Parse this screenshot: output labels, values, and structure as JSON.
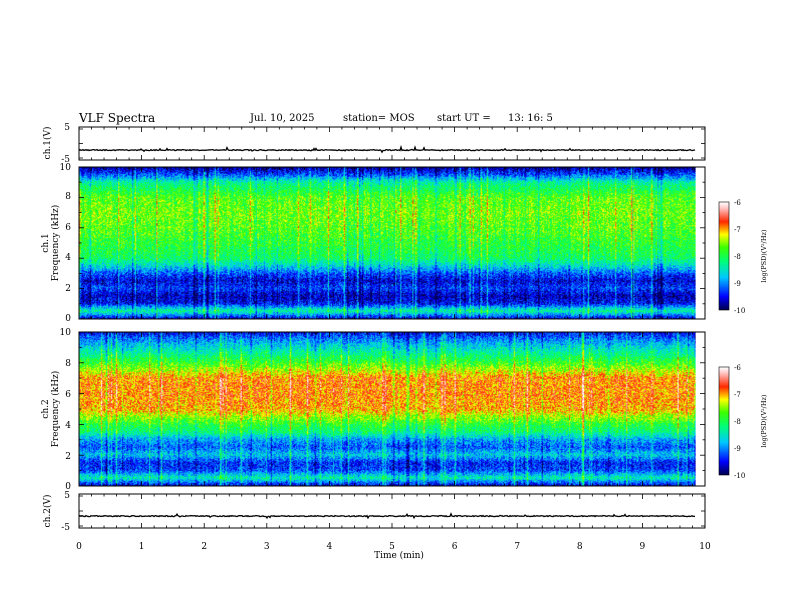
{
  "header": {
    "title": "VLF Spectra",
    "date": "Jul. 10, 2025",
    "station_label": "station= MOS",
    "start_label": "start UT =",
    "start_time": "13: 16: 5"
  },
  "colors": {
    "colormap": [
      "#000070",
      "#0000ff",
      "#00ffff",
      "#00ff00",
      "#ffff00",
      "#ff0000",
      "#ffffff"
    ]
  },
  "chart_data": [
    {
      "type": "line",
      "id": "ch1-waveform",
      "ylabel": "ch.1(V)",
      "ylim": [
        -5,
        5
      ],
      "yticks": [
        "5",
        "-5"
      ],
      "baseline": -2
    },
    {
      "type": "heatmap",
      "id": "ch1-spectrogram",
      "ylabel_top": "ch.1",
      "ylabel": "Frequency (kHz)",
      "ylim": [
        0,
        10
      ],
      "yticks": [
        "0",
        "2",
        "4",
        "6",
        "8",
        "10"
      ],
      "colorbar": {
        "label": "log(PSD)(V²/Hz)",
        "range": [
          -10,
          -6
        ],
        "ticks": [
          "-6",
          "-7",
          "-8",
          "-9",
          "-10"
        ]
      },
      "band_profile_log_psd": [
        {
          "freq_khz": 0.0,
          "value": -9.6
        },
        {
          "freq_khz": 0.5,
          "value": -8.3
        },
        {
          "freq_khz": 1.0,
          "value": -9.5
        },
        {
          "freq_khz": 1.5,
          "value": -9.7
        },
        {
          "freq_khz": 2.0,
          "value": -9.3
        },
        {
          "freq_khz": 2.5,
          "value": -9.6
        },
        {
          "freq_khz": 3.0,
          "value": -9.2
        },
        {
          "freq_khz": 3.5,
          "value": -8.6
        },
        {
          "freq_khz": 4.0,
          "value": -8.1
        },
        {
          "freq_khz": 5.0,
          "value": -7.9
        },
        {
          "freq_khz": 6.0,
          "value": -7.7
        },
        {
          "freq_khz": 7.0,
          "value": -7.6
        },
        {
          "freq_khz": 8.0,
          "value": -7.7
        },
        {
          "freq_khz": 9.0,
          "value": -8.3
        },
        {
          "freq_khz": 9.5,
          "value": -9.2
        },
        {
          "freq_khz": 10.0,
          "value": -9.8
        }
      ]
    },
    {
      "type": "heatmap",
      "id": "ch2-spectrogram",
      "ylabel_top": "ch.2",
      "ylabel": "Frequency (kHz)",
      "ylim": [
        0,
        10
      ],
      "yticks": [
        "0",
        "2",
        "4",
        "6",
        "8",
        "10"
      ],
      "colorbar": {
        "label": "log(PSD)(V²/Hz)",
        "range": [
          -10,
          -6
        ],
        "ticks": [
          "-6",
          "-7",
          "-8",
          "-9",
          "-10"
        ]
      },
      "band_profile_log_psd": [
        {
          "freq_khz": 0.0,
          "value": -9.6
        },
        {
          "freq_khz": 0.5,
          "value": -8.4
        },
        {
          "freq_khz": 1.0,
          "value": -9.3
        },
        {
          "freq_khz": 1.5,
          "value": -9.4
        },
        {
          "freq_khz": 2.0,
          "value": -8.7
        },
        {
          "freq_khz": 2.5,
          "value": -9.2
        },
        {
          "freq_khz": 3.0,
          "value": -8.9
        },
        {
          "freq_khz": 3.5,
          "value": -8.2
        },
        {
          "freq_khz": 4.0,
          "value": -7.9
        },
        {
          "freq_khz": 5.0,
          "value": -7.0
        },
        {
          "freq_khz": 6.0,
          "value": -6.9
        },
        {
          "freq_khz": 7.0,
          "value": -6.9
        },
        {
          "freq_khz": 8.0,
          "value": -7.8
        },
        {
          "freq_khz": 9.0,
          "value": -8.6
        },
        {
          "freq_khz": 9.5,
          "value": -9.0
        },
        {
          "freq_khz": 10.0,
          "value": -9.5
        }
      ]
    },
    {
      "type": "line",
      "id": "ch2-waveform",
      "ylabel": "ch.2(V)",
      "ylim": [
        -5,
        5
      ],
      "yticks": [
        "5",
        "-5"
      ],
      "baseline": -1.5
    }
  ],
  "xaxis": {
    "label": "Time (min)",
    "xlim": [
      0,
      10
    ],
    "ticks": [
      "0",
      "1",
      "2",
      "3",
      "4",
      "5",
      "6",
      "7",
      "8",
      "9",
      "10"
    ],
    "data_end_min": 9.85
  }
}
